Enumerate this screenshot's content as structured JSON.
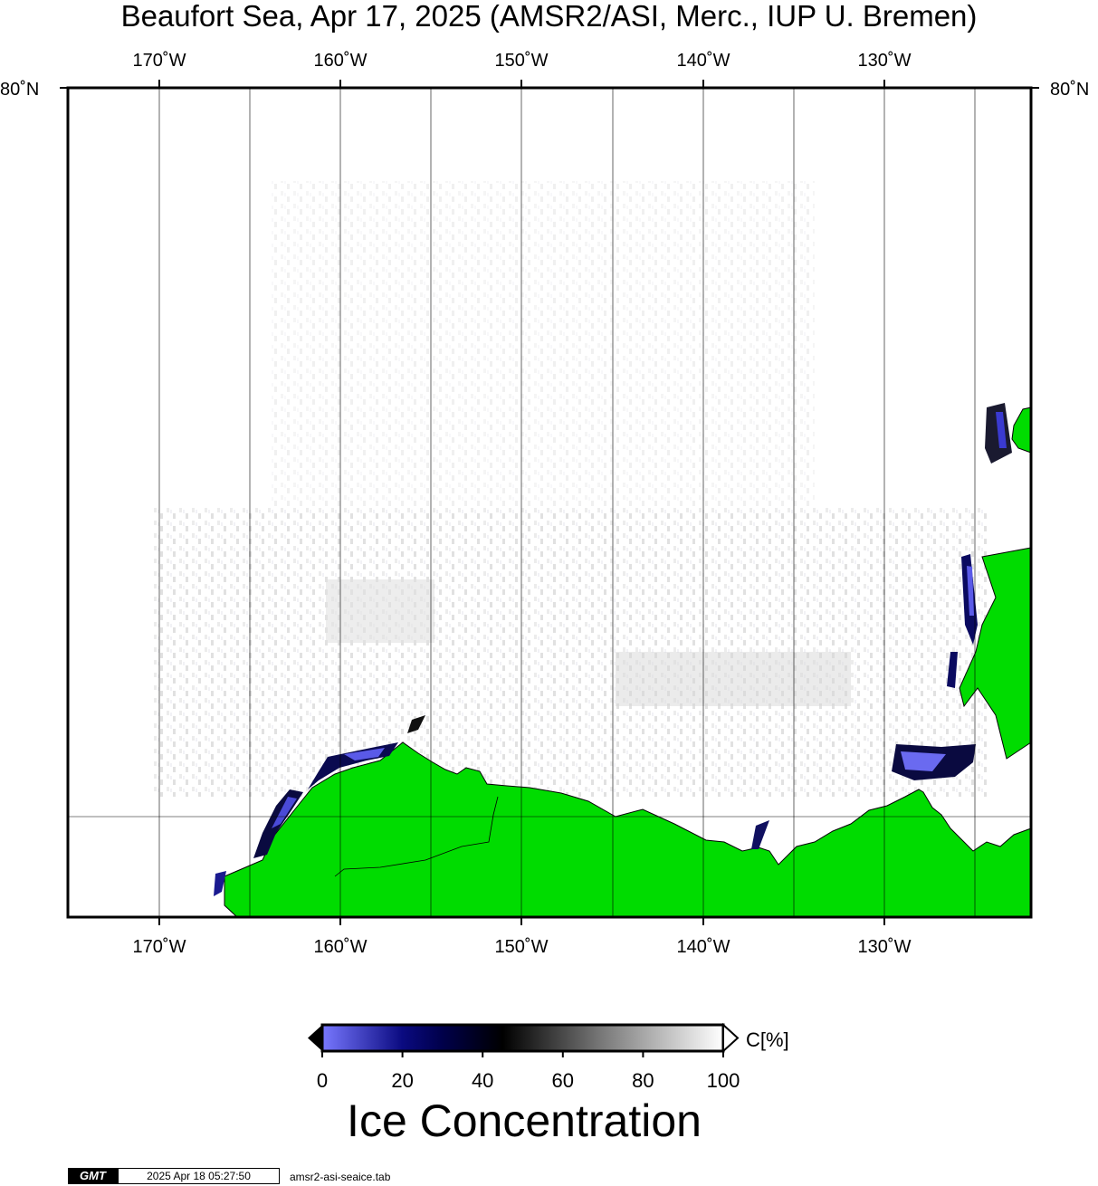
{
  "title": "Beaufort Sea, Apr 17, 2025 (AMSR2/ASI, Merc., IUP U. Bremen)",
  "longitude_labels": [
    "170˚W",
    "160˚W",
    "150˚W",
    "140˚W",
    "130˚W"
  ],
  "latitude_label_left": "80˚N",
  "latitude_label_right": "80˚N",
  "colorbar": {
    "ticks": [
      "0",
      "20",
      "40",
      "60",
      "80",
      "100"
    ],
    "unit": "C[%]",
    "title": "Ice Concentration",
    "colors": {
      "low": "#7878ff",
      "mid_low": "#00005a",
      "mid": "#000000",
      "high": "#ffffff"
    }
  },
  "land_color": "#00dc00",
  "footer": {
    "logo": "GMT",
    "timestamp": "2025 Apr 18 05:27:50",
    "file": "amsr2-asi-seaice.tab"
  }
}
